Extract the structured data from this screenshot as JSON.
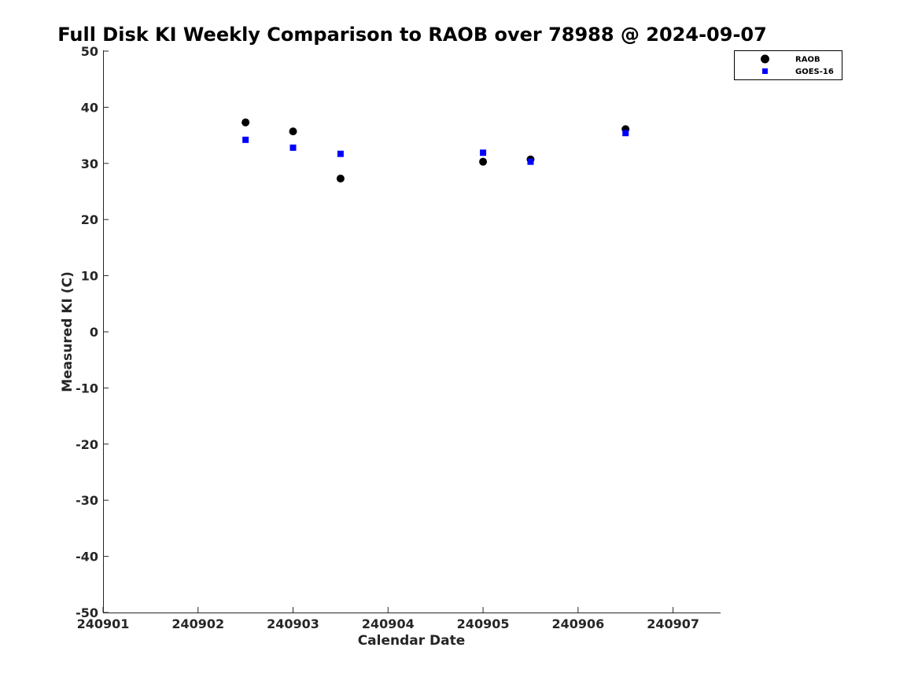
{
  "chart_data": {
    "type": "scatter",
    "title": "Full Disk KI Weekly Comparison to RAOB over 78988 @ 2024-09-07",
    "xlabel": "Calendar Date",
    "ylabel": "Measured KI (C)",
    "xlim": [
      240901,
      240907.5
    ],
    "ylim": [
      -50,
      50
    ],
    "x_ticks": [
      240901,
      240902,
      240903,
      240904,
      240905,
      240906,
      240907
    ],
    "x_tick_labels": [
      "240901",
      "240902",
      "240903",
      "240904",
      "240905",
      "240906",
      "240907"
    ],
    "y_ticks": [
      50,
      40,
      30,
      20,
      10,
      0,
      -10,
      -20,
      -30,
      -40,
      -50
    ],
    "y_tick_labels": [
      "50",
      "40",
      "30",
      "20",
      "10",
      "0",
      "-10",
      "-20",
      "-30",
      "-40",
      "-50"
    ],
    "grid": false,
    "legend_position": "top-right",
    "series": [
      {
        "name": "RAOB",
        "marker": "circle",
        "color": "#000000",
        "x": [
          240902.5,
          240903.0,
          240903.5,
          240905.0,
          240905.5,
          240906.5
        ],
        "y": [
          37.3,
          35.7,
          27.3,
          30.3,
          30.7,
          36.1
        ]
      },
      {
        "name": "GOES-16",
        "marker": "square",
        "color": "#0000ff",
        "x": [
          240902.5,
          240903.0,
          240903.5,
          240905.0,
          240905.5,
          240906.5
        ],
        "y": [
          34.2,
          32.8,
          31.7,
          31.9,
          30.3,
          35.4
        ]
      }
    ]
  }
}
